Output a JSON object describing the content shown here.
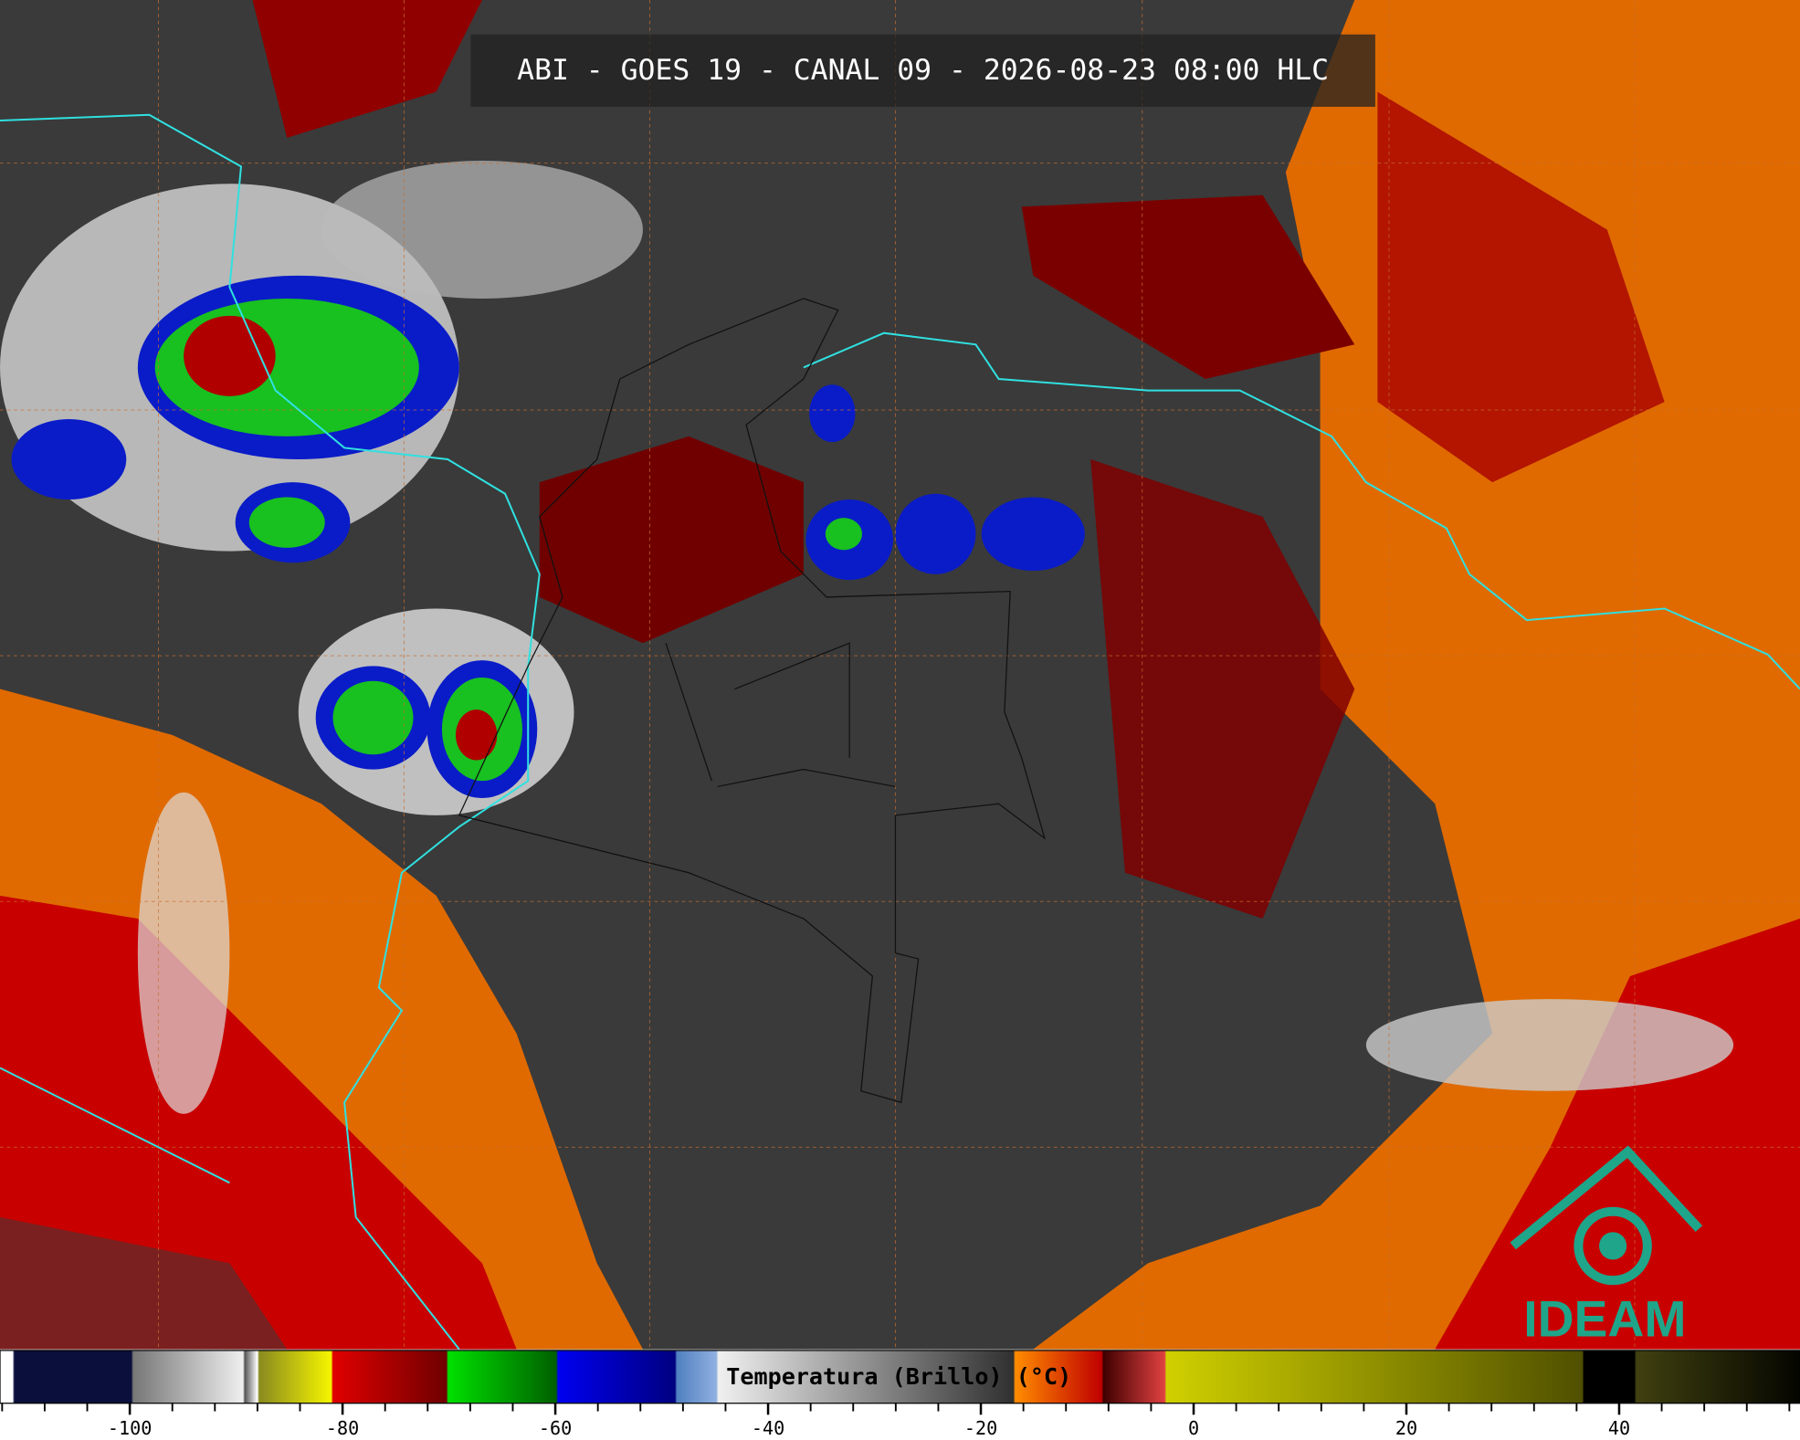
{
  "title": "ABI - GOES 19 - CANAL 09 - 2026-08-23 08:00 HLC",
  "colorbar": {
    "label": "Temperatura (Brillo) (°C)",
    "lim": [
      -112.2,
      57
    ],
    "ticks": [
      -100,
      -80,
      -60,
      -40,
      -20,
      0,
      20,
      40
    ]
  },
  "logo": "IDEAM"
}
